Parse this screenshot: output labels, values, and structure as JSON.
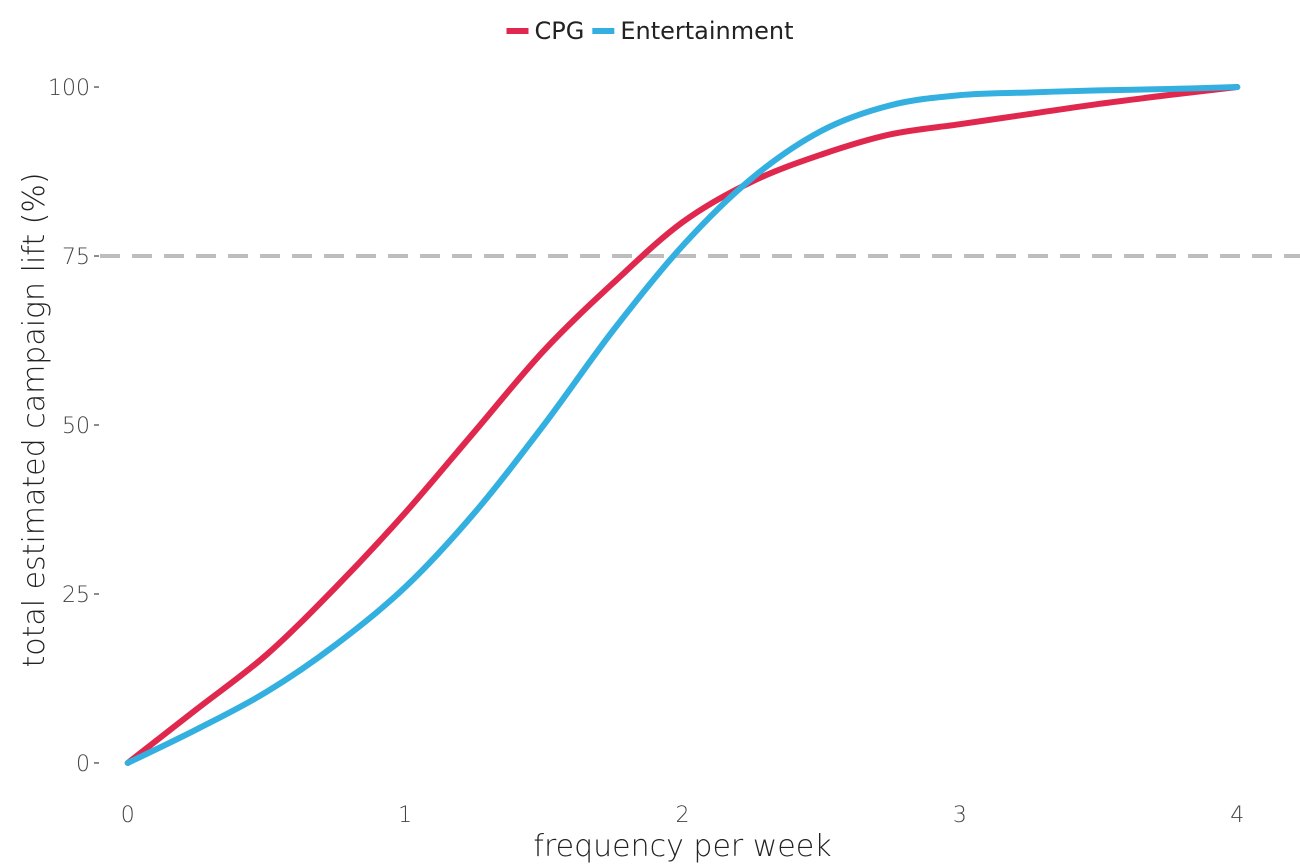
{
  "chart_data": {
    "type": "line",
    "title": "",
    "xlabel": "frequency per week",
    "ylabel": "total estimated campaign lift (%)",
    "xlim": [
      -0.1,
      4.1
    ],
    "ylim": [
      -4,
      104
    ],
    "xticks": [
      0,
      1,
      2,
      3,
      4
    ],
    "yticks": [
      0,
      25,
      50,
      75,
      100
    ],
    "grid": false,
    "legend_position": "top-center",
    "reference_line": {
      "y": 75,
      "style": "dashed",
      "color": "#bdbdbd"
    },
    "x": [
      0,
      0.25,
      0.5,
      0.75,
      1.0,
      1.25,
      1.5,
      1.75,
      2.0,
      2.25,
      2.5,
      2.75,
      3.0,
      3.25,
      3.5,
      3.75,
      4.0
    ],
    "series": [
      {
        "name": "CPG",
        "color": "#e0284f",
        "values": [
          0,
          8,
          16,
          26,
          37,
          49,
          61,
          71,
          80,
          86,
          90,
          93,
          94.5,
          96,
          97.5,
          98.8,
          100
        ]
      },
      {
        "name": "Entertainment",
        "color": "#34b0e0",
        "values": [
          0,
          5,
          10.5,
          17.5,
          26,
          37,
          50,
          64,
          76.5,
          86.5,
          93.5,
          97.3,
          98.8,
          99.2,
          99.5,
          99.7,
          100
        ]
      }
    ]
  }
}
